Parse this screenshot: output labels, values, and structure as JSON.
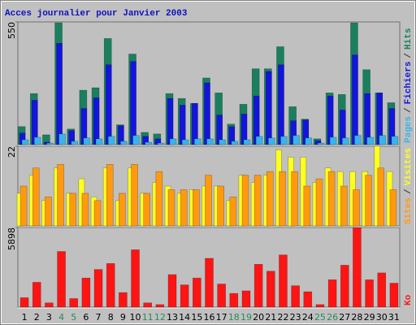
{
  "chart_data": [
    {
      "type": "bar",
      "title": "Acces journalier pour Janvier 2003",
      "ylim": [
        0,
        550
      ],
      "yticks": [
        550
      ],
      "legend_separator": "/",
      "series": [
        {
          "name": "Pages",
          "color": "#3ab4e8",
          "values": [
            22,
            33,
            7,
            48,
            15,
            30,
            26,
            37,
            15,
            41,
            11,
            7,
            26,
            22,
            26,
            26,
            22,
            15,
            22,
            37,
            30,
            37,
            41,
            30,
            7,
            33,
            30,
            41,
            33,
            41,
            37
          ]
        },
        {
          "name": "Fichiers",
          "color": "#1414e0",
          "values": [
            52,
            199,
            11,
            454,
            63,
            162,
            210,
            358,
            85,
            373,
            37,
            26,
            207,
            177,
            185,
            277,
            133,
            81,
            137,
            218,
            328,
            358,
            107,
            111,
            18,
            218,
            155,
            402,
            229,
            232,
            162
          ]
        },
        {
          "name": "Hits",
          "color": "#1a7f5f",
          "values": [
            81,
            229,
            44,
            546,
            70,
            244,
            255,
            476,
            89,
            406,
            55,
            48,
            229,
            207,
            185,
            299,
            232,
            92,
            181,
            340,
            340,
            439,
            170,
            114,
            26,
            232,
            225,
            546,
            336,
            232,
            188
          ]
        }
      ]
    },
    {
      "type": "bar",
      "ylim": [
        0,
        22
      ],
      "yticks": [
        22
      ],
      "legend_separator": "/",
      "series": [
        {
          "name": "Sites",
          "color": "#ff9a10",
          "values": [
            11,
            16,
            8,
            17,
            9,
            9,
            7,
            17,
            9,
            17,
            9,
            15,
            10,
            10,
            10,
            14,
            11,
            8,
            14,
            14,
            15,
            15,
            15,
            11,
            13,
            15,
            11,
            10,
            14,
            16,
            10
          ]
        },
        {
          "name": "Visites",
          "color": "#ffff20",
          "values": [
            9,
            14,
            7,
            16,
            9,
            13,
            8,
            16,
            7,
            16,
            9,
            12,
            11,
            9,
            10,
            11,
            11,
            7,
            14,
            12,
            14,
            21,
            19,
            19,
            12,
            16,
            15,
            15,
            15,
            22,
            15
          ]
        }
      ]
    },
    {
      "type": "bar",
      "ylim": [
        0,
        5898
      ],
      "yticks": [
        5898
      ],
      "categories": [
        "1",
        "2",
        "3",
        "4",
        "5",
        "6",
        "7",
        "8",
        "9",
        "10",
        "11",
        "12",
        "13",
        "14",
        "15",
        "16",
        "17",
        "18",
        "19",
        "20",
        "21",
        "22",
        "23",
        "24",
        "25",
        "26",
        "27",
        "28",
        "29",
        "30",
        "31"
      ],
      "category_colors": [
        "#000",
        "#000",
        "#000",
        "#2a8a5a",
        "#2a8a5a",
        "#000",
        "#000",
        "#000",
        "#000",
        "#000",
        "#2a8a5a",
        "#2a8a5a",
        "#000",
        "#000",
        "#000",
        "#000",
        "#000",
        "#2a8a5a",
        "#2a8a5a",
        "#000",
        "#000",
        "#000",
        "#000",
        "#000",
        "#2a8a5a",
        "#2a8a5a",
        "#000",
        "#000",
        "#000",
        "#000",
        "#000"
      ],
      "series": [
        {
          "name": "Ko",
          "color": "#ff1414",
          "values": [
            698,
            1840,
            317,
            4122,
            634,
            2156,
            2790,
            3234,
            1078,
            4249,
            317,
            190,
            2410,
            1649,
            2156,
            3615,
            1712,
            1015,
            1205,
            3171,
            2663,
            3868,
            1585,
            1141,
            190,
            2029,
            3107,
            5898,
            2029,
            2537,
            1775
          ]
        }
      ]
    }
  ]
}
